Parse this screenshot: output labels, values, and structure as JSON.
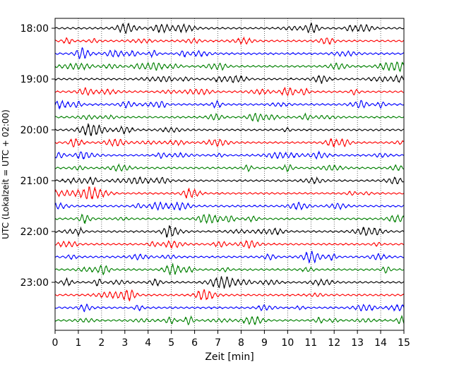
{
  "chart_data": {
    "type": "line",
    "title": "",
    "xlabel": "Zeit  [min]",
    "ylabel": "UTC (Lokalzeit = UTC + 02:00)",
    "xlim": [
      0,
      15
    ],
    "xticks": [
      0,
      1,
      2,
      3,
      4,
      5,
      6,
      7,
      8,
      9,
      10,
      11,
      12,
      13,
      14,
      15
    ],
    "yticks": [
      "18:00",
      "19:00",
      "20:00",
      "21:00",
      "22:00",
      "23:00"
    ],
    "trace_colors": [
      "#000000",
      "#ff0000",
      "#0000ff",
      "#008000"
    ],
    "traces_per_hour": 4,
    "trace_count": 24,
    "start_time": "18:00",
    "grid": "vertical dotted at each minute",
    "series": "seismogram helicorder, 15-minute traces"
  }
}
